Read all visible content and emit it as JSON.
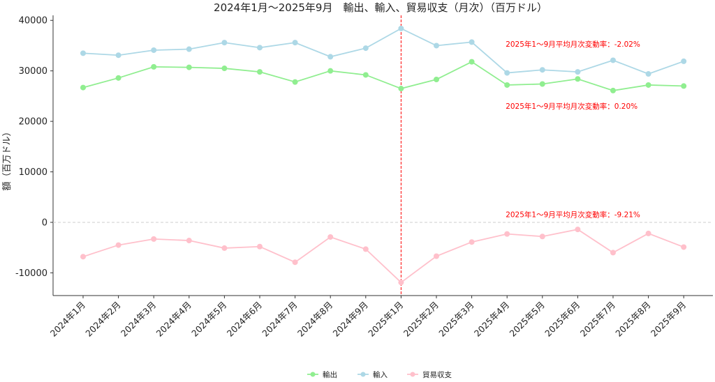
{
  "chart_data": {
    "type": "line",
    "title": "2024年1月～2025年9月　輸出、輸入、貿易収支（月次）（百万ドル）",
    "xlabel": "",
    "ylabel": "額（百万ドル）",
    "ylim": [
      -14500,
      41000
    ],
    "yticks": [
      -10000,
      0,
      10000,
      20000,
      30000,
      40000
    ],
    "grid": false,
    "legend_position": "bottom-center",
    "categories": [
      "2024年1月",
      "2024年2月",
      "2024年3月",
      "2024年4月",
      "2024年5月",
      "2024年6月",
      "2024年7月",
      "2024年8月",
      "2024年9月",
      "2025年1月",
      "2025年2月",
      "2025年3月",
      "2025年4月",
      "2025年5月",
      "2025年6月",
      "2025年7月",
      "2025年8月",
      "2025年9月"
    ],
    "series": [
      {
        "name": "輸出",
        "color": "#90ee90",
        "values": [
          26700,
          28600,
          30800,
          30700,
          30500,
          29800,
          27800,
          30000,
          29200,
          26500,
          28300,
          31800,
          27200,
          27400,
          28400,
          26100,
          27200,
          27000
        ]
      },
      {
        "name": "輸入",
        "color": "#add8e6",
        "values": [
          33500,
          33100,
          34100,
          34300,
          35600,
          34600,
          35600,
          32800,
          34500,
          38400,
          35000,
          35700,
          29600,
          30200,
          29800,
          32100,
          29400,
          31900
        ]
      },
      {
        "name": "貿易収支",
        "color": "#ffc0cb",
        "values": [
          -6800,
          -4500,
          -3300,
          -3600,
          -5100,
          -4800,
          -7900,
          -2900,
          -5300,
          -11900,
          -6700,
          -3900,
          -2300,
          -2800,
          -1400,
          -6000,
          -2200,
          -4900
        ]
      }
    ],
    "reference_lines": [
      {
        "axis": "x",
        "at_category": "2025年1月",
        "color": "#ff0000",
        "style": "dashed"
      },
      {
        "axis": "y",
        "value": 0,
        "color": "#cccccc",
        "style": "dashed"
      }
    ],
    "annotations": [
      {
        "text": "2025年1～9月平均月次変動率：-2.02%",
        "series": "輸入",
        "anchor_category": "2025年4月",
        "anchor_value": 34800,
        "color": "#ff0000"
      },
      {
        "text": "2025年1～9月平均月次変動率：0.20%",
        "series": "輸出",
        "anchor_category": "2025年4月",
        "anchor_value": 22500,
        "color": "#ff0000"
      },
      {
        "text": "2025年1～9月平均月次変動率：-9.21%",
        "series": "貿易収支",
        "anchor_category": "2025年4月",
        "anchor_value": 1000,
        "color": "#ff0000"
      }
    ]
  }
}
